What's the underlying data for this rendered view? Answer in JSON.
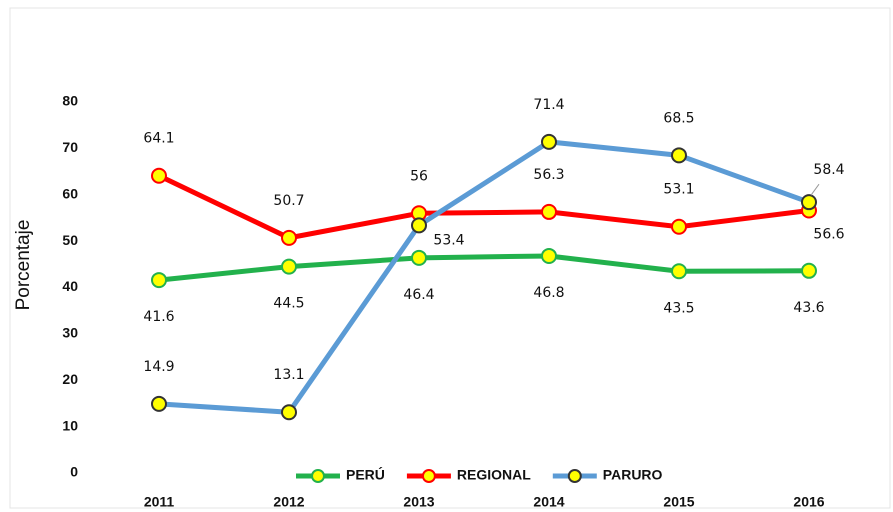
{
  "chart_data": {
    "type": "line",
    "y_label": "Porcentaje",
    "categories": [
      "2011",
      "2012",
      "2013",
      "2014",
      "2015",
      "2016"
    ],
    "series": [
      {
        "name": "PERÚ",
        "color": "#22b14c",
        "values": [
          41.6,
          44.5,
          46.4,
          46.8,
          43.5,
          43.6
        ]
      },
      {
        "name": "REGIONAL",
        "color": "#ff0000",
        "values": [
          64.1,
          50.7,
          56,
          56.3,
          53.1,
          56.6
        ]
      },
      {
        "name": "PARURO",
        "color": "#5b9bd5",
        "values": [
          14.9,
          13.1,
          53.4,
          71.4,
          68.5,
          58.4
        ]
      }
    ],
    "marker_color": "#ffff00",
    "ylim": [
      0,
      80
    ],
    "yticks": [
      0,
      10,
      20,
      30,
      40,
      50,
      60,
      70,
      80
    ],
    "grid": false,
    "legend": "bottom"
  }
}
